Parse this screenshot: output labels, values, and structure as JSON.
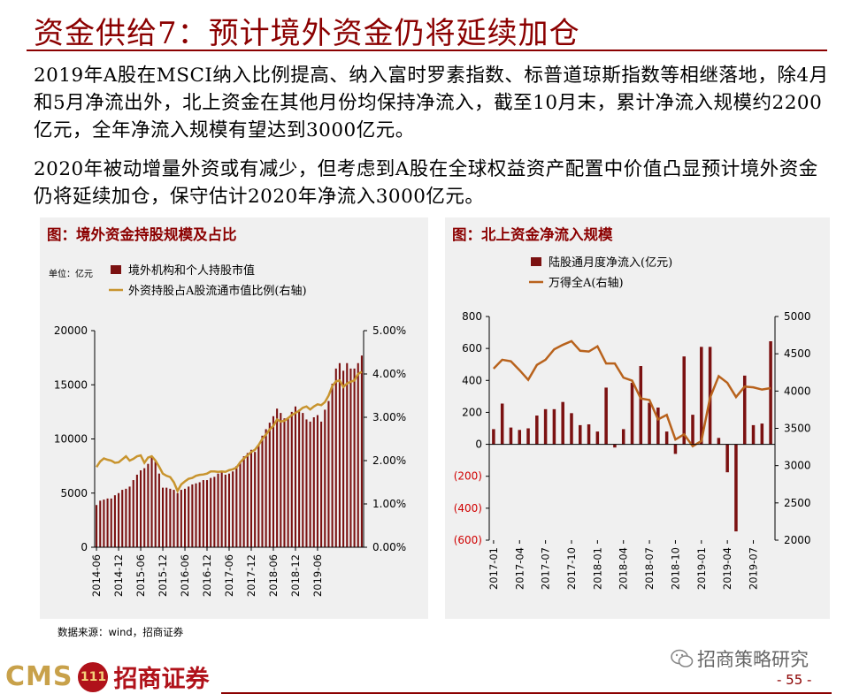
{
  "page": {
    "title": "资金供给7：预计境外资金仍将延续加仓",
    "paragraphs": [
      "2019年A股在MSCI纳入比例提高、纳入富时罗素指数、标普道琼斯指数等相继落地，除4月和5月净流出外，北上资金在其他月份均保持净流入，截至10月末，累计净流入规模约2200亿元，全年净流入规模有望达到3000亿元。",
      "2020年被动增量外资或有减少，但考虑到A股在全球权益资产配置中价值凸显预计境外资金仍将延续加仓，保守估计2020年净流入3000亿元。"
    ],
    "source": "数据来源：wind，招商证券",
    "logo_latin": "CMS",
    "logo_badge": "111",
    "logo_chinese": "招商证券",
    "wechat": "招商策略研究",
    "page_number": "- 55 -"
  },
  "colors": {
    "brand": "#8b0000",
    "bar": "#7b1111",
    "line": "#c8942e",
    "line2": "#b8621c",
    "panel_bg": "#f0f0f0"
  },
  "chart_data": [
    {
      "type": "bar",
      "title": "图：境外资金持股规模及占比",
      "unit_label": "单位：亿元",
      "legend": [
        "境外机构和个人持股市值",
        "外资持股占A股流通市值比例(右轴)"
      ],
      "x_tick_labels": [
        "2014-06",
        "2014-12",
        "2015-06",
        "2015-12",
        "2016-06",
        "2016-12",
        "2017-06",
        "2017-12",
        "2018-06",
        "2018-12",
        "2019-06"
      ],
      "y_ticks": [
        "0",
        "5000",
        "10000",
        "15000",
        "20000"
      ],
      "y2_ticks": [
        "0.00%",
        "1.00%",
        "2.00%",
        "3.00%",
        "4.00%",
        "5.00%"
      ],
      "ylim": [
        0,
        20000
      ],
      "y2lim": [
        0,
        5
      ],
      "series": [
        {
          "name": "境外机构和个人持股市值",
          "kind": "bar",
          "values": [
            3900,
            4300,
            4400,
            4500,
            4500,
            4800,
            5000,
            5300,
            5400,
            5600,
            6200,
            6700,
            7100,
            7300,
            7700,
            8400,
            7900,
            6800,
            5500,
            5500,
            5400,
            5300,
            5000,
            5300,
            5400,
            5600,
            5800,
            5900,
            6000,
            6200,
            6200,
            6400,
            6500,
            6800,
            6900,
            6700,
            6800,
            7000,
            7500,
            7900,
            8400,
            8700,
            9000,
            8800,
            9400,
            10300,
            10900,
            11500,
            12100,
            12800,
            12400,
            11900,
            12000,
            12500,
            13000,
            12700,
            12400,
            11800,
            11600,
            12000,
            12200,
            11600,
            12700,
            13500,
            15100,
            16500,
            17000,
            16300,
            17000,
            16500,
            16500,
            17000,
            17700
          ]
        },
        {
          "name": "外资持股占A股流通市值比例(右轴)",
          "kind": "line",
          "values": [
            1.85,
            1.98,
            2.05,
            2.02,
            2.0,
            1.95,
            1.96,
            2.03,
            2.1,
            2.0,
            2.04,
            2.1,
            2.12,
            1.95,
            2.07,
            2.1,
            2.0,
            1.86,
            1.7,
            1.65,
            1.62,
            1.5,
            1.3,
            1.45,
            1.52,
            1.58,
            1.6,
            1.65,
            1.67,
            1.68,
            1.7,
            1.75,
            1.75,
            1.74,
            1.75,
            1.74,
            1.78,
            1.8,
            1.84,
            1.96,
            2.05,
            2.12,
            2.2,
            2.25,
            2.36,
            2.5,
            2.6,
            2.72,
            2.8,
            2.95,
            2.9,
            2.92,
            2.98,
            3.05,
            3.1,
            3.15,
            3.22,
            3.25,
            3.18,
            3.25,
            3.3,
            3.28,
            3.35,
            3.5,
            3.72,
            3.83,
            3.85,
            3.7,
            3.78,
            3.82,
            3.85,
            4.0,
            4.05
          ]
        }
      ]
    },
    {
      "type": "bar",
      "title": "图：北上资金净流入规模",
      "legend": [
        "陆股通月度净流入(亿元)",
        "万得全A(右轴)"
      ],
      "x_tick_labels": [
        "2017-01",
        "2017-04",
        "2017-07",
        "2017-10",
        "2018-01",
        "2018-04",
        "2018-07",
        "2018-10",
        "2019-01",
        "2019-04",
        "2019-07"
      ],
      "y_ticks": [
        "(600)",
        "(400)",
        "(200)",
        "0",
        "200",
        "400",
        "600",
        "800"
      ],
      "y2_ticks": [
        "2000",
        "2500",
        "3000",
        "3500",
        "4000",
        "4500",
        "5000"
      ],
      "ylim": [
        -600,
        800
      ],
      "y2lim": [
        2000,
        5000
      ],
      "series": [
        {
          "name": "陆股通月度净流入(亿元)",
          "kind": "bar",
          "values": [
            95,
            255,
            105,
            90,
            100,
            180,
            220,
            220,
            265,
            195,
            120,
            125,
            80,
            355,
            -20,
            95,
            385,
            490,
            260,
            230,
            80,
            -60,
            550,
            185,
            610,
            610,
            40,
            -175,
            -545,
            430,
            120,
            130,
            645
          ]
        },
        {
          "name": "万得全A(右轴)",
          "kind": "line",
          "values": [
            4300,
            4420,
            4400,
            4280,
            4150,
            4350,
            4420,
            4560,
            4620,
            4670,
            4540,
            4530,
            4600,
            4370,
            4370,
            4180,
            4140,
            3900,
            3880,
            3620,
            3680,
            3350,
            3420,
            3260,
            3330,
            3910,
            4200,
            4110,
            3920,
            4060,
            4050,
            4020,
            4040
          ]
        }
      ]
    }
  ]
}
